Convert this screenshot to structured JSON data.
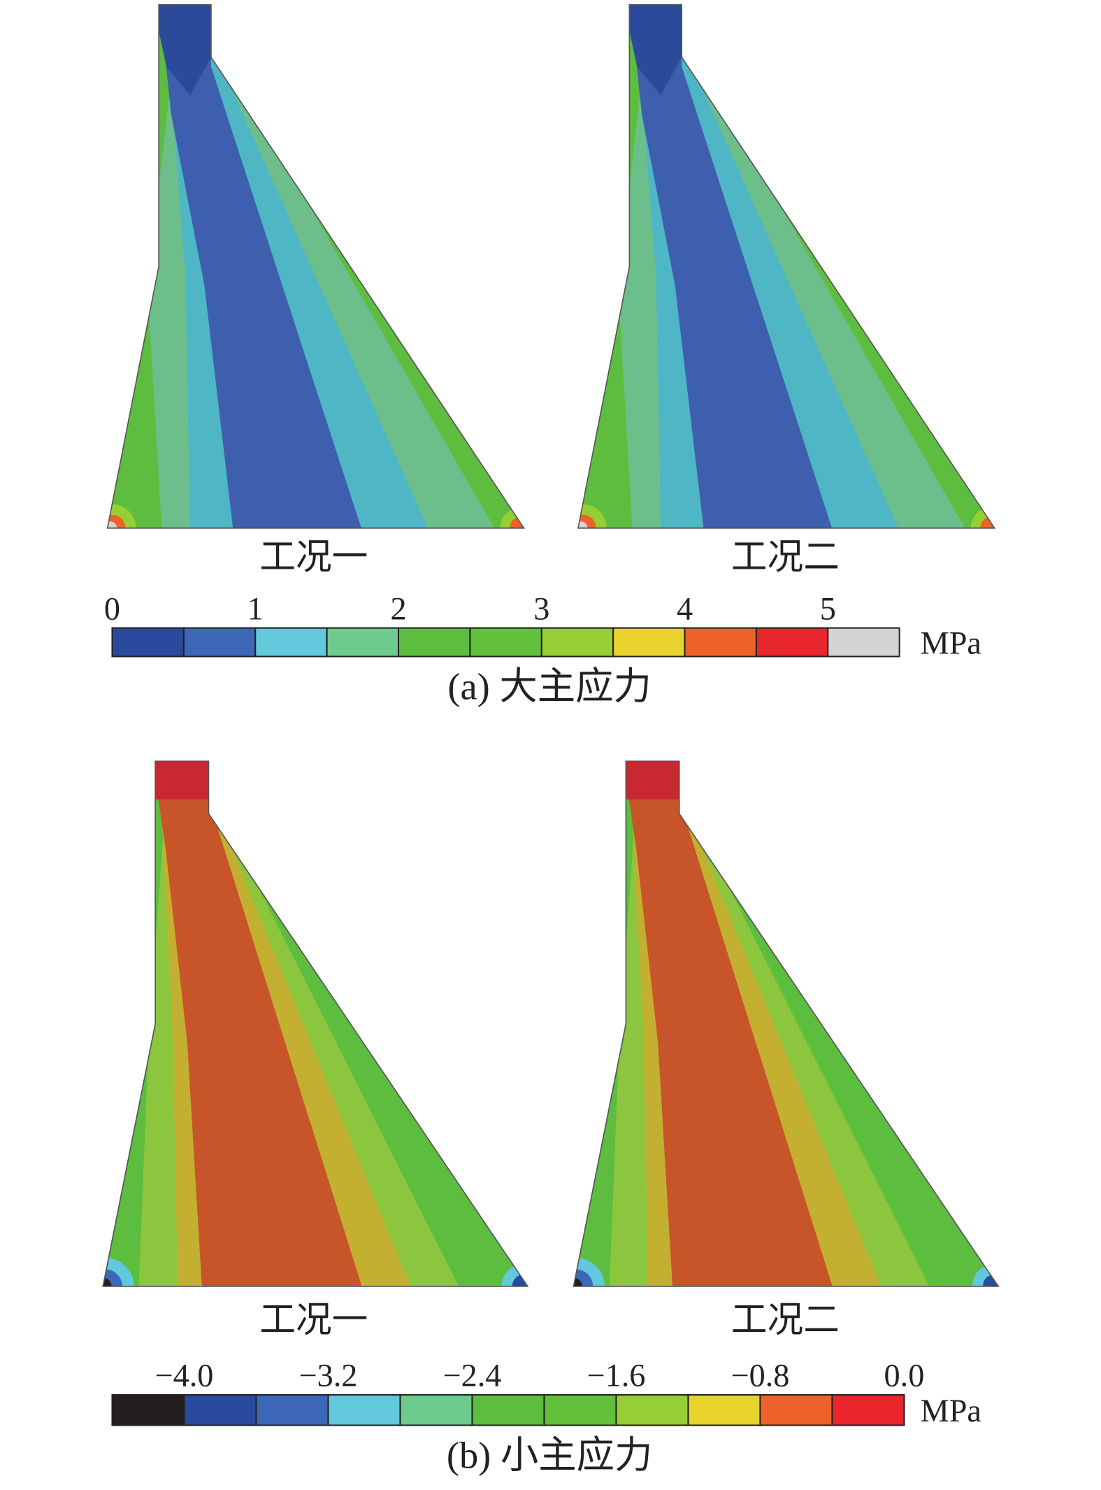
{
  "panels": [
    {
      "caption": "(a) 大主应力",
      "labels": [
        "工况一",
        "工况二"
      ],
      "colorbar": {
        "unit": "MPa",
        "lim": [
          0,
          5.5
        ],
        "ticks": [
          0,
          1,
          2,
          3,
          4,
          5
        ],
        "colors": [
          "#2a4a9d",
          "#3d68b8",
          "#62c8dc",
          "#6ccb8d",
          "#5cbd3f",
          "#63c03a",
          "#96cf34",
          "#e8d22c",
          "#ee6229",
          "#e8262b",
          "#d3d3d3"
        ]
      }
    },
    {
      "caption": "(b) 小主应力",
      "labels": [
        "工况一",
        "工况二"
      ],
      "colorbar": {
        "unit": "MPa",
        "lim": [
          -4.4,
          0.0
        ],
        "ticks": [
          {
            "value": -4.0,
            "label": "−4.0"
          },
          {
            "value": -3.2,
            "label": "−3.2"
          },
          {
            "value": -2.4,
            "label": "−2.4"
          },
          {
            "value": -1.6,
            "label": "−1.6"
          },
          {
            "value": -0.8,
            "label": "−0.8"
          },
          {
            "value": 0.0,
            "label": "0.0"
          }
        ],
        "colors": [
          "#231f20",
          "#2a4a9d",
          "#3d68b8",
          "#62c8dc",
          "#6ccb8d",
          "#5cbd3f",
          "#63c03a",
          "#96cf34",
          "#e8d22c",
          "#ee6229",
          "#e8262b"
        ]
      }
    }
  ]
}
